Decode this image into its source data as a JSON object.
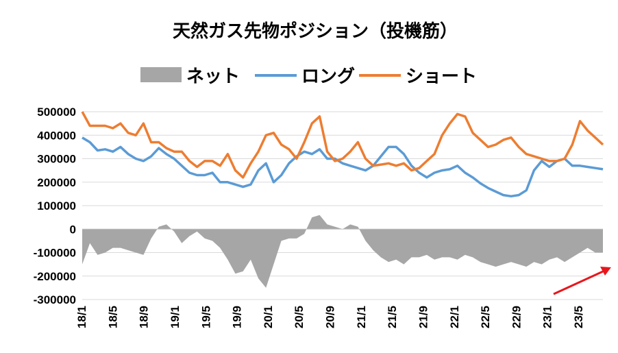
{
  "chart_data": {
    "type": "line",
    "title": "天然ガス先物ポジション（投機筋）",
    "xlabel": "",
    "ylabel": "",
    "ylim": [
      -300000,
      500000
    ],
    "yticks": [
      "500000",
      "400000",
      "300000",
      "200000",
      "100000",
      "0",
      "-100000",
      "-200000",
      "-300000"
    ],
    "xticks": [
      "18/1",
      "18/5",
      "18/9",
      "19/1",
      "19/5",
      "19/9",
      "20/1",
      "20/5",
      "20/9",
      "21/1",
      "21/5",
      "21/9",
      "22/1",
      "22/5",
      "22/9",
      "23/1",
      "23/5"
    ],
    "grid": true,
    "legend_position": "top",
    "colors": {
      "net": "#a6a6a6",
      "long": "#5b9bd5",
      "short": "#ed7d31",
      "arrow": "#e8161b"
    },
    "annotation": {
      "type": "arrow",
      "direction": "up-right",
      "location": "bottom-right"
    },
    "t": [
      0,
      1,
      2,
      3,
      4,
      5,
      6,
      7,
      8,
      9,
      10,
      11,
      12,
      13,
      14,
      15,
      16,
      17,
      18,
      19,
      20,
      21,
      22,
      23,
      24,
      25,
      26,
      27,
      28,
      29,
      30,
      31,
      32,
      33,
      34,
      35,
      36,
      37,
      38,
      39,
      40,
      41,
      42,
      43,
      44,
      45,
      46,
      47,
      48,
      49,
      50,
      51,
      52,
      53,
      54,
      55,
      56,
      57,
      58,
      59,
      60,
      61,
      62,
      63,
      64,
      65,
      66,
      67,
      68
    ],
    "series": [
      {
        "name": "ショート",
        "key": "short",
        "values": [
          500000,
          440000,
          440000,
          440000,
          430000,
          450000,
          410000,
          400000,
          450000,
          370000,
          370000,
          345000,
          330000,
          330000,
          290000,
          265000,
          290000,
          290000,
          270000,
          320000,
          250000,
          220000,
          280000,
          330000,
          400000,
          410000,
          360000,
          340000,
          300000,
          370000,
          450000,
          480000,
          330000,
          290000,
          300000,
          330000,
          370000,
          300000,
          270000,
          275000,
          280000,
          270000,
          280000,
          250000,
          260000,
          290000,
          320000,
          400000,
          450000,
          490000,
          480000,
          410000,
          380000,
          350000,
          360000,
          380000,
          390000,
          350000,
          320000,
          310000,
          300000,
          290000,
          290000,
          300000,
          360000,
          460000,
          420000,
          390000,
          360000
        ]
      },
      {
        "name": "ロング",
        "key": "long",
        "values": [
          390000,
          370000,
          335000,
          340000,
          330000,
          350000,
          320000,
          300000,
          290000,
          310000,
          345000,
          320000,
          300000,
          270000,
          240000,
          230000,
          230000,
          240000,
          200000,
          200000,
          190000,
          180000,
          190000,
          250000,
          280000,
          200000,
          230000,
          280000,
          310000,
          330000,
          320000,
          340000,
          300000,
          300000,
          280000,
          270000,
          260000,
          250000,
          270000,
          310000,
          350000,
          350000,
          320000,
          270000,
          240000,
          220000,
          240000,
          250000,
          255000,
          270000,
          240000,
          220000,
          195000,
          175000,
          160000,
          145000,
          140000,
          145000,
          165000,
          250000,
          290000,
          265000,
          290000,
          300000,
          270000,
          270000,
          265000,
          260000,
          255000
        ]
      },
      {
        "name": "ネット",
        "key": "net",
        "values": [
          -150000,
          -60000,
          -110000,
          -100000,
          -80000,
          -80000,
          -90000,
          -100000,
          -110000,
          -40000,
          10000,
          20000,
          -10000,
          -60000,
          -30000,
          -10000,
          -40000,
          -50000,
          -80000,
          -130000,
          -190000,
          -180000,
          -130000,
          -210000,
          -250000,
          -150000,
          -50000,
          -40000,
          -40000,
          -20000,
          50000,
          60000,
          20000,
          10000,
          0,
          20000,
          10000,
          -50000,
          -90000,
          -120000,
          -140000,
          -130000,
          -150000,
          -120000,
          -120000,
          -110000,
          -130000,
          -120000,
          -120000,
          -130000,
          -110000,
          -120000,
          -140000,
          -150000,
          -160000,
          -150000,
          -140000,
          -150000,
          -160000,
          -140000,
          -150000,
          -130000,
          -120000,
          -140000,
          -120000,
          -100000,
          -80000,
          -100000,
          -100000
        ]
      }
    ]
  }
}
